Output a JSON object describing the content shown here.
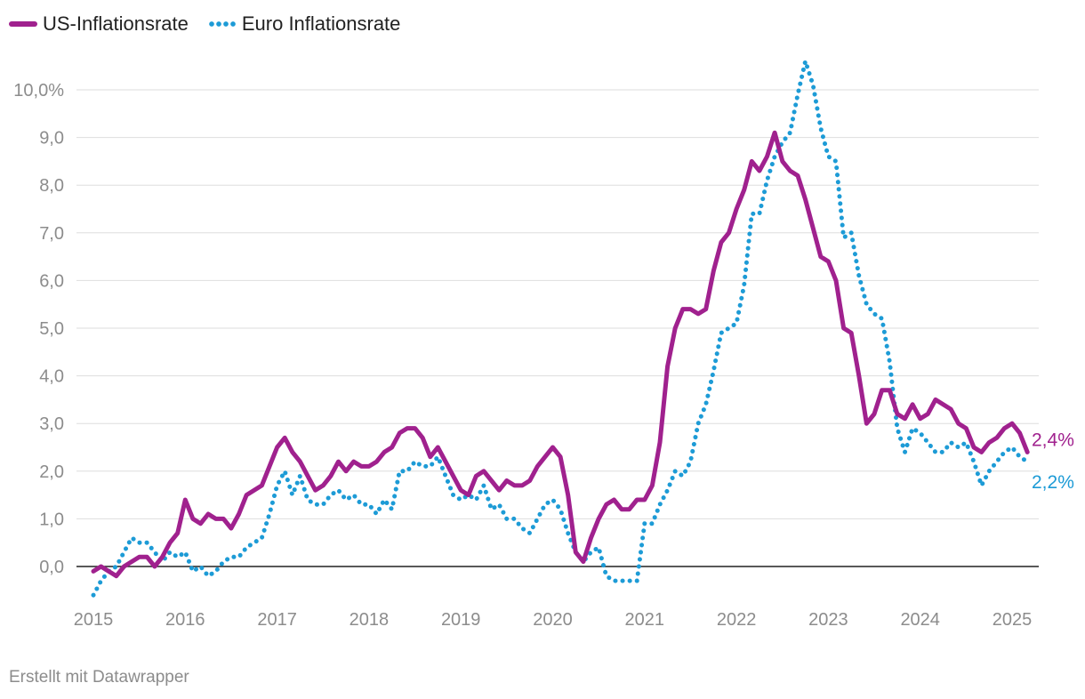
{
  "chart_data": {
    "type": "line",
    "ylim": [
      -0.7,
      10.7
    ],
    "grid": true,
    "legend_position": "top-left",
    "y_ticks": [
      {
        "value": 0,
        "label": "0,0"
      },
      {
        "value": 1,
        "label": "1,0"
      },
      {
        "value": 2,
        "label": "2,0"
      },
      {
        "value": 3,
        "label": "3,0"
      },
      {
        "value": 4,
        "label": "4,0"
      },
      {
        "value": 5,
        "label": "5,0"
      },
      {
        "value": 6,
        "label": "6,0"
      },
      {
        "value": 7,
        "label": "7,0"
      },
      {
        "value": 8,
        "label": "8,0"
      },
      {
        "value": 9,
        "label": "9,0"
      },
      {
        "value": 10,
        "label": "10,0%"
      }
    ],
    "x_ticks": [
      "2015",
      "2016",
      "2017",
      "2018",
      "2019",
      "2020",
      "2021",
      "2022",
      "2023",
      "2024",
      "2025"
    ],
    "start_month": "2015-01",
    "series": [
      {
        "name": "US-Inflationsrate",
        "color": "#a0218e",
        "style": "solid",
        "end_label": "2,4%",
        "values": [
          -0.1,
          0.0,
          -0.1,
          -0.2,
          0.0,
          0.1,
          0.2,
          0.2,
          0.0,
          0.2,
          0.5,
          0.7,
          1.4,
          1.0,
          0.9,
          1.1,
          1.0,
          1.0,
          0.8,
          1.1,
          1.5,
          1.6,
          1.7,
          2.1,
          2.5,
          2.7,
          2.4,
          2.2,
          1.9,
          1.6,
          1.7,
          1.9,
          2.2,
          2.0,
          2.2,
          2.1,
          2.1,
          2.2,
          2.4,
          2.5,
          2.8,
          2.9,
          2.9,
          2.7,
          2.3,
          2.5,
          2.2,
          1.9,
          1.6,
          1.5,
          1.9,
          2.0,
          1.8,
          1.6,
          1.8,
          1.7,
          1.7,
          1.8,
          2.1,
          2.3,
          2.5,
          2.3,
          1.5,
          0.3,
          0.1,
          0.6,
          1.0,
          1.3,
          1.4,
          1.2,
          1.2,
          1.4,
          1.4,
          1.7,
          2.6,
          4.2,
          5.0,
          5.4,
          5.4,
          5.3,
          5.4,
          6.2,
          6.8,
          7.0,
          7.5,
          7.9,
          8.5,
          8.3,
          8.6,
          9.1,
          8.5,
          8.3,
          8.2,
          7.7,
          7.1,
          6.5,
          6.4,
          6.0,
          5.0,
          4.9,
          4.0,
          3.0,
          3.2,
          3.7,
          3.7,
          3.2,
          3.1,
          3.4,
          3.1,
          3.2,
          3.5,
          3.4,
          3.3,
          3.0,
          2.9,
          2.5,
          2.4,
          2.6,
          2.7,
          2.9,
          3.0,
          2.8,
          2.4
        ]
      },
      {
        "name": "Euro Inflationsrate",
        "color": "#1d9bd6",
        "style": "dotted",
        "end_label": "2,2%",
        "values": [
          -0.6,
          -0.3,
          -0.1,
          0.0,
          0.3,
          0.6,
          0.5,
          0.5,
          0.3,
          0.1,
          0.3,
          0.2,
          0.3,
          -0.1,
          0.0,
          -0.2,
          -0.1,
          0.1,
          0.2,
          0.2,
          0.4,
          0.5,
          0.6,
          1.1,
          1.7,
          2.0,
          1.5,
          1.9,
          1.4,
          1.3,
          1.3,
          1.5,
          1.6,
          1.4,
          1.5,
          1.3,
          1.3,
          1.1,
          1.4,
          1.2,
          2.0,
          2.0,
          2.2,
          2.1,
          2.1,
          2.3,
          1.9,
          1.5,
          1.4,
          1.5,
          1.4,
          1.7,
          1.2,
          1.3,
          1.0,
          1.0,
          0.8,
          0.7,
          1.0,
          1.3,
          1.4,
          1.2,
          0.7,
          0.3,
          0.1,
          0.3,
          0.4,
          -0.2,
          -0.3,
          -0.3,
          -0.3,
          -0.3,
          0.9,
          0.9,
          1.3,
          1.6,
          2.0,
          1.9,
          2.2,
          3.0,
          3.4,
          4.1,
          4.9,
          5.0,
          5.1,
          5.9,
          7.4,
          7.4,
          8.1,
          8.6,
          8.9,
          9.1,
          9.9,
          10.6,
          10.1,
          9.2,
          8.6,
          8.5,
          6.9,
          7.0,
          6.1,
          5.5,
          5.3,
          5.2,
          4.3,
          2.9,
          2.4,
          2.9,
          2.8,
          2.6,
          2.4,
          2.4,
          2.6,
          2.5,
          2.6,
          2.2,
          1.7,
          2.0,
          2.2,
          2.4,
          2.5,
          2.3,
          2.2
        ]
      }
    ]
  },
  "footer": "Erstellt mit Datawrapper"
}
